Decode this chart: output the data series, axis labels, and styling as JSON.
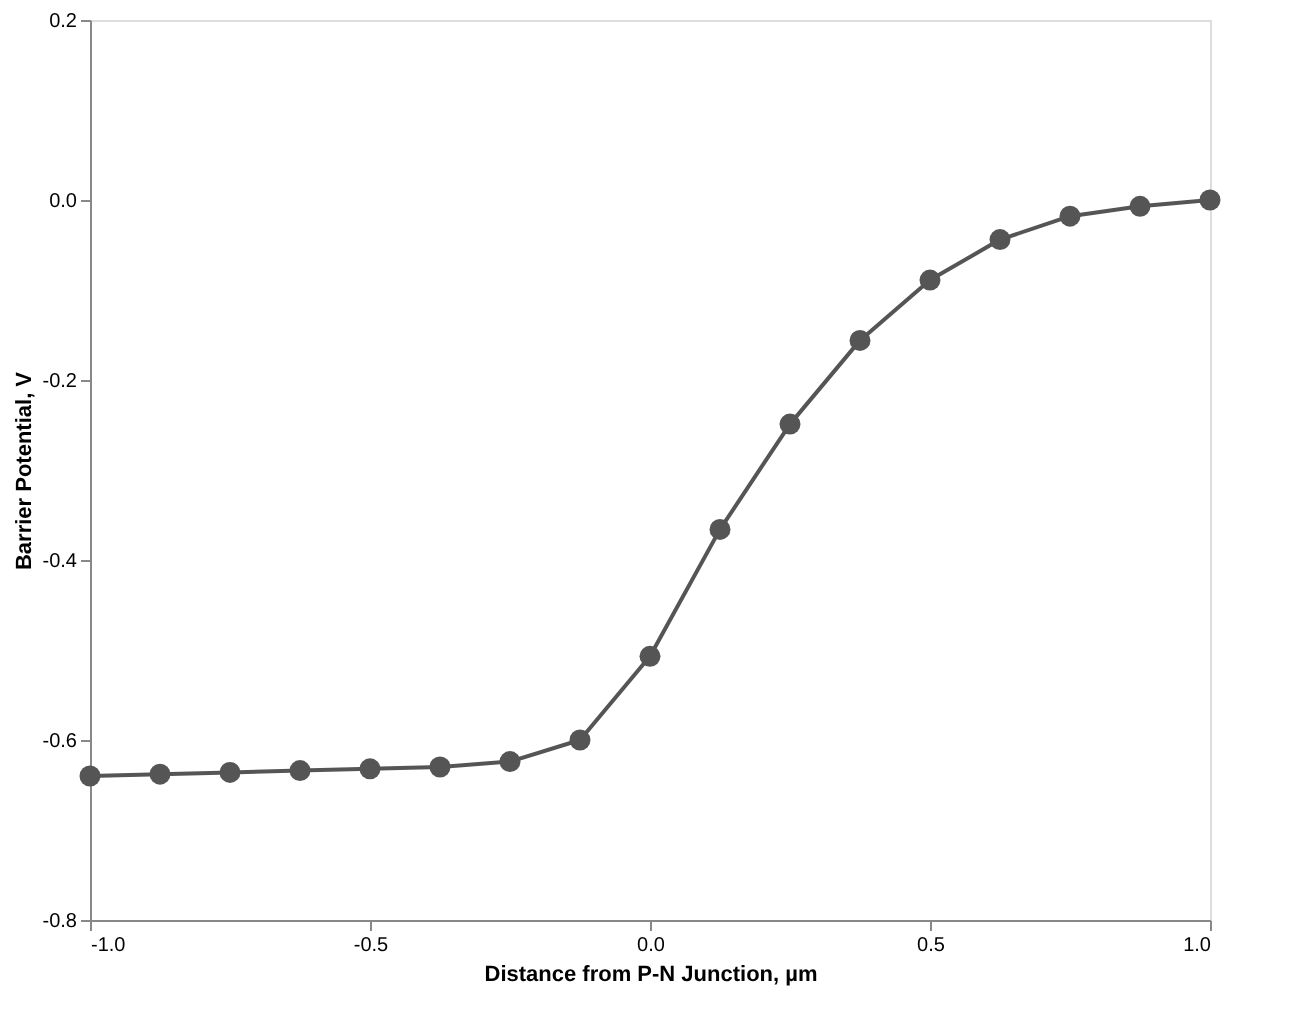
{
  "chart_data": {
    "type": "line",
    "xlabel": "Distance from P-N Junction, µm",
    "ylabel": "Barrier  Potential, V",
    "x": [
      -1.0,
      -0.875,
      -0.75,
      -0.625,
      -0.5,
      -0.375,
      -0.25,
      -0.125,
      0.0,
      0.125,
      0.25,
      0.375,
      0.5,
      0.625,
      0.75,
      0.875,
      1.0
    ],
    "series": [
      {
        "color": "#555555",
        "values": [
          -0.64,
          -0.638,
          -0.636,
          -0.634,
          -0.632,
          -0.63,
          -0.624,
          -0.6,
          -0.507,
          -0.366,
          -0.249,
          -0.156,
          -0.089,
          -0.044,
          -0.018,
          -0.007,
          0.0
        ]
      }
    ],
    "xlim": [
      -1.0,
      1.0
    ],
    "xticks": [
      {
        "value": -1.0,
        "label": "-1.0"
      },
      -0.5,
      {
        "value": 0.0,
        "label": "0.0"
      },
      0.5,
      {
        "value": 1.0,
        "label": "1.0"
      }
    ],
    "ylim": [
      -0.8,
      0.2
    ],
    "yticks": [
      -0.8,
      -0.6,
      -0.4,
      -0.2,
      {
        "value": 0.0,
        "label": "0.0"
      },
      0.2
    ],
    "marker": "circle",
    "line_style": "solid",
    "grid": false
  }
}
